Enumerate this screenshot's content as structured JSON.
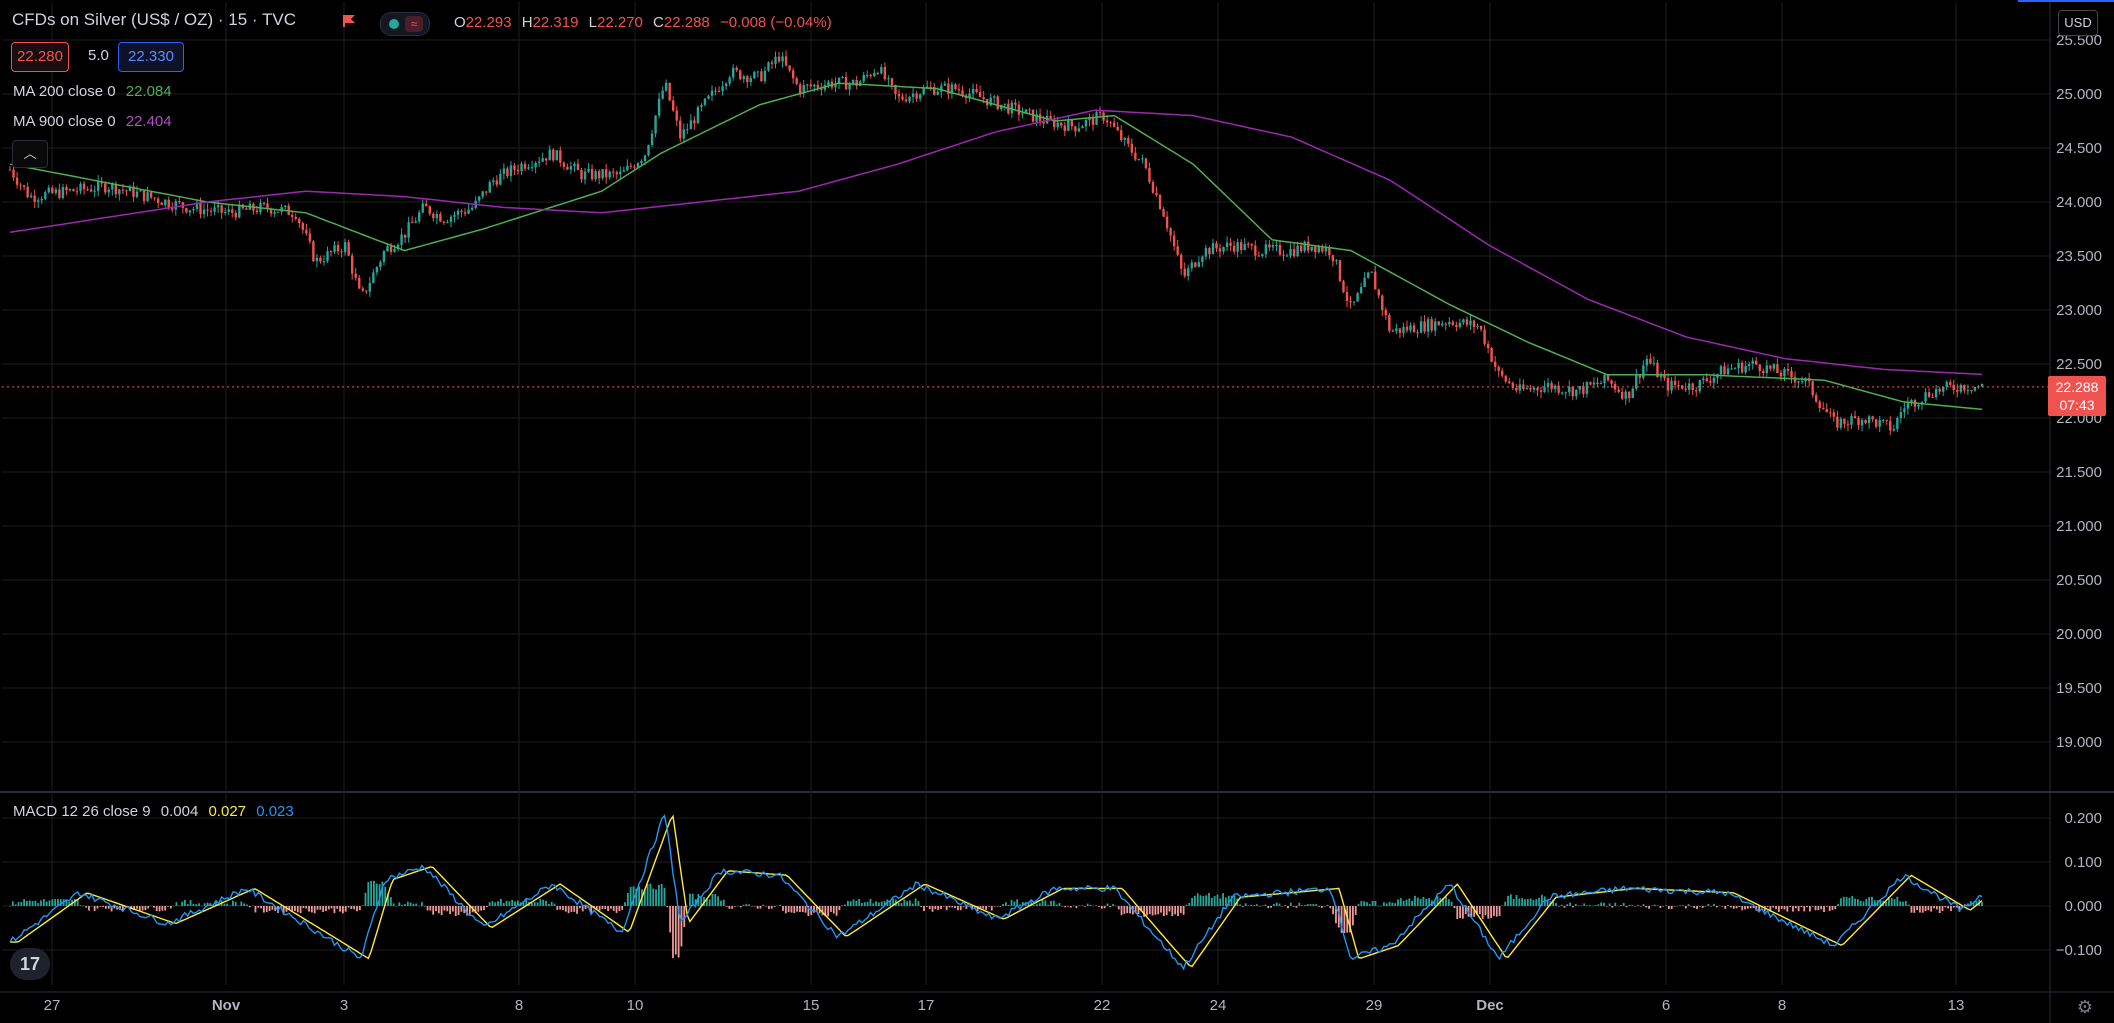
{
  "legend": {
    "title": "CFDs on Silver (US$ / OZ) · 15 · TVC",
    "ohlc": [
      {
        "k": "O",
        "v": "22.293"
      },
      {
        "k": "H",
        "v": "22.319"
      },
      {
        "k": "L",
        "v": "22.270"
      },
      {
        "k": "C",
        "v": "22.288"
      }
    ],
    "change": "−0.008 (−0.04%)",
    "bid": "22.280",
    "spread": "5.0",
    "ask": "22.330",
    "ma200_label": "MA 200 close 0",
    "ma200_value": "22.084",
    "ma900_label": "MA 900 close 0",
    "ma900_value": "22.404",
    "macd_label": "MACD 12 26 close 9",
    "macd_hist": "0.004",
    "macd_line": "0.027",
    "macd_signal": "0.023"
  },
  "currency_button": "USD",
  "last_price": "22.288",
  "countdown": "07:43",
  "icons": {
    "flag": "flag-icon",
    "collapse": "chevron-up-icon",
    "logo": "tradingview-logo",
    "settings": "gear-icon"
  },
  "colors": {
    "background": "#000000",
    "up": "#26a69a",
    "down": "#ef5350",
    "ma200": "#4caf50",
    "ma900": "#9c27b0",
    "macd_line": "#2196f3",
    "macd_signal": "#ffeb3b",
    "grid": "#1e1e1e"
  },
  "chart_data": [
    {
      "type": "line",
      "subtype": "candlestick",
      "title": "CFDs on Silver (US$ / OZ) · 15 · TVC",
      "x_ticks": [
        "27",
        "Nov",
        "3",
        "8",
        "10",
        "15",
        "17",
        "22",
        "24",
        "29",
        "Dec",
        "6",
        "8",
        "13"
      ],
      "y_ticks": [
        "25.500",
        "25.000",
        "24.500",
        "24.000",
        "23.500",
        "23.000",
        "22.500",
        "22.000",
        "21.500",
        "21.000",
        "20.500",
        "20.000",
        "19.500",
        "19.000"
      ],
      "ylim": [
        18.6,
        25.6
      ],
      "close_path": [
        [
          0,
          24.3
        ],
        [
          0.01,
          24.05
        ],
        [
          0.03,
          24.1
        ],
        [
          0.05,
          24.15
        ],
        [
          0.07,
          24.05
        ],
        [
          0.09,
          23.95
        ],
        [
          0.11,
          23.9
        ],
        [
          0.13,
          23.95
        ],
        [
          0.145,
          23.9
        ],
        [
          0.155,
          23.45
        ],
        [
          0.17,
          23.6
        ],
        [
          0.178,
          23.1
        ],
        [
          0.19,
          23.55
        ],
        [
          0.2,
          23.7
        ],
        [
          0.21,
          23.95
        ],
        [
          0.22,
          23.85
        ],
        [
          0.235,
          23.95
        ],
        [
          0.245,
          24.2
        ],
        [
          0.26,
          24.35
        ],
        [
          0.275,
          24.45
        ],
        [
          0.29,
          24.25
        ],
        [
          0.31,
          24.25
        ],
        [
          0.322,
          24.45
        ],
        [
          0.332,
          25.1
        ],
        [
          0.34,
          24.6
        ],
        [
          0.35,
          24.85
        ],
        [
          0.365,
          25.2
        ],
        [
          0.38,
          25.15
        ],
        [
          0.39,
          25.35
        ],
        [
          0.4,
          25.05
        ],
        [
          0.415,
          25.1
        ],
        [
          0.43,
          25.1
        ],
        [
          0.44,
          25.25
        ],
        [
          0.45,
          24.95
        ],
        [
          0.465,
          25.05
        ],
        [
          0.48,
          25.05
        ],
        [
          0.495,
          24.95
        ],
        [
          0.51,
          24.85
        ],
        [
          0.525,
          24.75
        ],
        [
          0.54,
          24.7
        ],
        [
          0.555,
          24.8
        ],
        [
          0.565,
          24.55
        ],
        [
          0.575,
          24.35
        ],
        [
          0.585,
          23.9
        ],
        [
          0.595,
          23.3
        ],
        [
          0.605,
          23.55
        ],
        [
          0.62,
          23.6
        ],
        [
          0.635,
          23.55
        ],
        [
          0.65,
          23.55
        ],
        [
          0.66,
          23.6
        ],
        [
          0.67,
          23.55
        ],
        [
          0.68,
          23.0
        ],
        [
          0.69,
          23.35
        ],
        [
          0.7,
          22.8
        ],
        [
          0.715,
          22.85
        ],
        [
          0.73,
          22.9
        ],
        [
          0.745,
          22.85
        ],
        [
          0.755,
          22.4
        ],
        [
          0.765,
          22.25
        ],
        [
          0.78,
          22.3
        ],
        [
          0.795,
          22.25
        ],
        [
          0.81,
          22.35
        ],
        [
          0.82,
          22.2
        ],
        [
          0.83,
          22.55
        ],
        [
          0.84,
          22.3
        ],
        [
          0.855,
          22.3
        ],
        [
          0.87,
          22.45
        ],
        [
          0.885,
          22.5
        ],
        [
          0.9,
          22.4
        ],
        [
          0.91,
          22.35
        ],
        [
          0.925,
          21.95
        ],
        [
          0.94,
          22.0
        ],
        [
          0.955,
          21.9
        ],
        [
          0.96,
          22.1
        ],
        [
          0.975,
          22.25
        ],
        [
          0.99,
          22.3
        ],
        [
          1.0,
          22.29
        ]
      ],
      "series": [
        {
          "name": "MA 200 close 0",
          "last": 22.084,
          "path": [
            [
              0,
              24.35
            ],
            [
              0.1,
              24.0
            ],
            [
              0.15,
              23.9
            ],
            [
              0.2,
              23.55
            ],
            [
              0.24,
              23.75
            ],
            [
              0.3,
              24.1
            ],
            [
              0.33,
              24.45
            ],
            [
              0.38,
              24.9
            ],
            [
              0.42,
              25.1
            ],
            [
              0.47,
              25.05
            ],
            [
              0.53,
              24.75
            ],
            [
              0.56,
              24.8
            ],
            [
              0.6,
              24.35
            ],
            [
              0.64,
              23.65
            ],
            [
              0.68,
              23.55
            ],
            [
              0.73,
              23.05
            ],
            [
              0.77,
              22.7
            ],
            [
              0.81,
              22.4
            ],
            [
              0.86,
              22.4
            ],
            [
              0.92,
              22.35
            ],
            [
              0.96,
              22.15
            ],
            [
              1.0,
              22.08
            ]
          ]
        },
        {
          "name": "MA 900 close 0",
          "last": 22.404,
          "path": [
            [
              0,
              23.72
            ],
            [
              0.1,
              24.0
            ],
            [
              0.15,
              24.1
            ],
            [
              0.2,
              24.05
            ],
            [
              0.25,
              23.95
            ],
            [
              0.3,
              23.9
            ],
            [
              0.35,
              24.0
            ],
            [
              0.4,
              24.1
            ],
            [
              0.45,
              24.35
            ],
            [
              0.5,
              24.65
            ],
            [
              0.55,
              24.85
            ],
            [
              0.6,
              24.8
            ],
            [
              0.65,
              24.6
            ],
            [
              0.7,
              24.2
            ],
            [
              0.75,
              23.6
            ],
            [
              0.8,
              23.1
            ],
            [
              0.85,
              22.75
            ],
            [
              0.9,
              22.55
            ],
            [
              0.95,
              22.45
            ],
            [
              1.0,
              22.404
            ]
          ]
        }
      ]
    },
    {
      "type": "line",
      "subtype": "macd",
      "title": "MACD 12 26 close 9",
      "y_ticks": [
        "0.200",
        "0.100",
        "0.000",
        "−0.100"
      ],
      "ylim": [
        -0.17,
        0.23
      ],
      "spikes": [
        [
          0.01,
          -0.05
        ],
        [
          0.035,
          0.03
        ],
        [
          0.08,
          -0.04
        ],
        [
          0.12,
          0.04
        ],
        [
          0.16,
          -0.07
        ],
        [
          0.178,
          -0.12
        ],
        [
          0.19,
          0.06
        ],
        [
          0.21,
          0.09
        ],
        [
          0.24,
          -0.05
        ],
        [
          0.275,
          0.05
        ],
        [
          0.31,
          -0.06
        ],
        [
          0.332,
          0.21
        ],
        [
          0.34,
          -0.04
        ],
        [
          0.36,
          0.08
        ],
        [
          0.39,
          0.07
        ],
        [
          0.42,
          -0.07
        ],
        [
          0.46,
          0.05
        ],
        [
          0.5,
          -0.03
        ],
        [
          0.53,
          0.04
        ],
        [
          0.56,
          0.04
        ],
        [
          0.585,
          -0.09
        ],
        [
          0.595,
          -0.14
        ],
        [
          0.62,
          0.02
        ],
        [
          0.67,
          0.04
        ],
        [
          0.68,
          -0.12
        ],
        [
          0.7,
          -0.09
        ],
        [
          0.73,
          0.05
        ],
        [
          0.755,
          -0.12
        ],
        [
          0.78,
          0.02
        ],
        [
          0.82,
          0.04
        ],
        [
          0.87,
          0.03
        ],
        [
          0.925,
          -0.09
        ],
        [
          0.96,
          0.07
        ],
        [
          0.99,
          -0.01
        ],
        [
          1.0,
          0.027
        ]
      ]
    }
  ]
}
